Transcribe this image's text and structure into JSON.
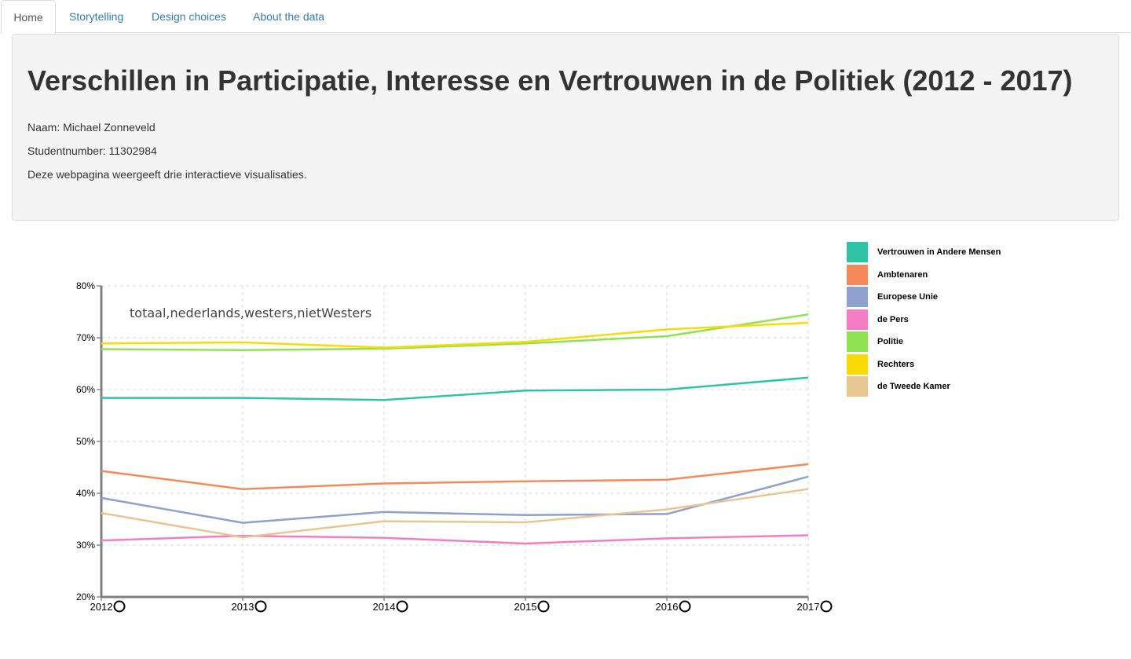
{
  "tabs": [
    {
      "label": "Home",
      "active": true
    },
    {
      "label": "Storytelling",
      "active": false
    },
    {
      "label": "Design choices",
      "active": false
    },
    {
      "label": "About the data",
      "active": false
    }
  ],
  "header": {
    "title": "Verschillen in Participatie, Interesse en Vertrouwen in de Politiek (2012 - 2017)",
    "name_line": "Naam: Michael Zonneveld",
    "student_line": "Studentnumber: 11302984",
    "description": "Deze webpagina weergeeft drie interactieve visualisaties."
  },
  "chart_data": {
    "type": "line",
    "annotation": "totaal,nederlands,westers,nietWesters",
    "x": [
      "2012",
      "2013",
      "2014",
      "2015",
      "2016",
      "2017"
    ],
    "y_ticks": [
      "20%",
      "30%",
      "40%",
      "50%",
      "60%",
      "70%",
      "80%"
    ],
    "ylim": [
      20,
      80
    ],
    "grid": true,
    "legend_position": "right",
    "series": [
      {
        "name": "Vertrouwen in Andere Mensen",
        "color": "#2ec4a5",
        "values": [
          58.4,
          58.4,
          58.0,
          59.8,
          60.0,
          62.3
        ]
      },
      {
        "name": "Ambtenaren",
        "color": "#f5895a",
        "values": [
          44.3,
          40.8,
          41.9,
          42.3,
          42.6,
          45.6
        ]
      },
      {
        "name": "Europese Unie",
        "color": "#8fa0cc",
        "values": [
          39.1,
          34.3,
          36.4,
          35.8,
          36.0,
          43.2
        ]
      },
      {
        "name": "de Pers",
        "color": "#f47cc3",
        "values": [
          30.9,
          31.8,
          31.4,
          30.3,
          31.3,
          31.9
        ]
      },
      {
        "name": "Politie",
        "color": "#8fe252",
        "values": [
          67.8,
          67.6,
          67.9,
          68.9,
          70.3,
          74.5
        ]
      },
      {
        "name": "Rechters",
        "color": "#fada04",
        "values": [
          68.9,
          69.1,
          68.1,
          69.2,
          71.6,
          72.9
        ]
      },
      {
        "name": "de Tweede Kamer",
        "color": "#e9c592",
        "values": [
          36.2,
          31.5,
          34.6,
          34.4,
          36.9,
          40.8
        ]
      }
    ]
  }
}
